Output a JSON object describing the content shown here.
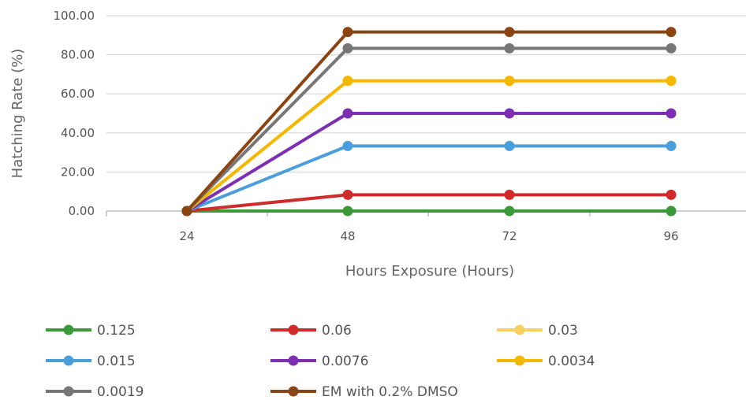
{
  "chart_data": {
    "type": "line",
    "title": "",
    "xlabel": "Hours Exposure (Hours)",
    "ylabel": "Hatching Rate (%)",
    "categories": [
      "24",
      "48",
      "72",
      "96"
    ],
    "ylim": [
      0,
      100
    ],
    "yticks": [
      "0.00",
      "20.00",
      "40.00",
      "60.00",
      "80.00",
      "100.00"
    ],
    "grid": true,
    "legend_position": "bottom",
    "series": [
      {
        "name": "0.125",
        "color": "#3a9a3a",
        "values": [
          0,
          0,
          0,
          0
        ]
      },
      {
        "name": "0.06",
        "color": "#d02a2a",
        "values": [
          0,
          8.33,
          8.33,
          8.33
        ]
      },
      {
        "name": "0.03",
        "color": "#f7d060",
        "values": [
          0,
          66.67,
          66.67,
          66.67
        ]
      },
      {
        "name": "0.015",
        "color": "#4a9edb",
        "values": [
          0,
          33.33,
          33.33,
          33.33
        ]
      },
      {
        "name": "0.0076",
        "color": "#7c2fb0",
        "values": [
          0,
          50,
          50,
          50
        ]
      },
      {
        "name": "0.0034",
        "color": "#f5b800",
        "values": [
          0,
          66.67,
          66.67,
          66.67
        ]
      },
      {
        "name": "0.0019",
        "color": "#777777",
        "values": [
          0,
          83.33,
          83.33,
          83.33
        ]
      },
      {
        "name": "EM with 0.2% DMSO",
        "color": "#8b4513",
        "values": [
          0,
          91.67,
          91.67,
          91.67
        ]
      }
    ]
  }
}
